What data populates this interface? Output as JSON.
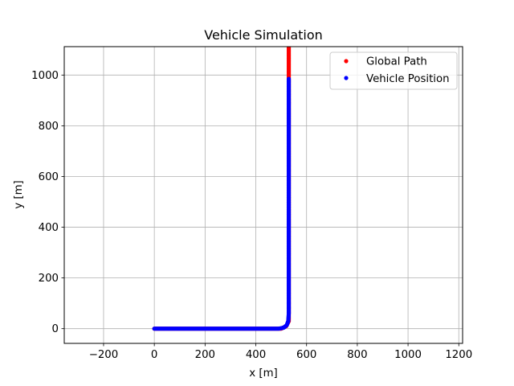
{
  "chart_data": {
    "type": "scatter",
    "title": "Vehicle Simulation",
    "xlabel": "x [m]",
    "ylabel": "y [m]",
    "xlim": [
      -355,
      1215
    ],
    "ylim": [
      -58,
      1112
    ],
    "x_ticks": [
      -200,
      0,
      200,
      400,
      600,
      800,
      1000,
      1200
    ],
    "y_ticks": [
      0,
      200,
      400,
      600,
      800,
      1000
    ],
    "x_tick_labels": [
      "−200",
      "0",
      "200",
      "400",
      "600",
      "800",
      "1000",
      "1200"
    ],
    "y_tick_labels": [
      "0",
      "200",
      "400",
      "600",
      "800",
      "1000"
    ],
    "grid": true,
    "legend_position": "top-right",
    "series": [
      {
        "name": "Global Path",
        "color": "#ff0000",
        "marker": "dot",
        "x": [
          0,
          500,
          520,
          530,
          530,
          530
        ],
        "y": [
          0,
          0,
          10,
          30,
          1000,
          1112
        ]
      },
      {
        "name": "Vehicle Position",
        "color": "#0000ff",
        "marker": "dot",
        "x": [
          0,
          490,
          510,
          522,
          528,
          530,
          530
        ],
        "y": [
          0,
          0,
          4,
          14,
          30,
          60,
          985
        ]
      }
    ]
  }
}
